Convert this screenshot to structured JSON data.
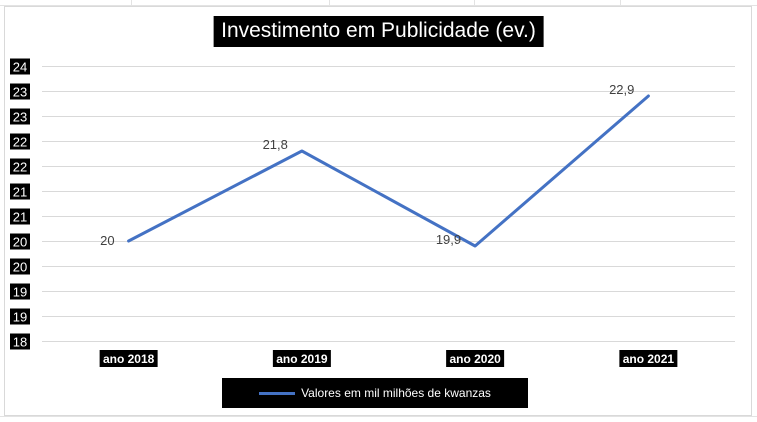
{
  "chart_data": {
    "type": "line",
    "title": "Investimento em Publicidade (ev.)",
    "categories": [
      "ano 2018",
      "ano 2019",
      "ano 2020",
      "ano 2021"
    ],
    "series": [
      {
        "name": "Valores em mil milhões de kwanzas",
        "values": [
          20,
          21.8,
          19.9,
          22.9
        ],
        "data_labels": [
          "20",
          "21,8",
          "19,9",
          "22,9"
        ],
        "color": "#4472c4"
      }
    ],
    "y_tick_labels": [
      "24",
      "23",
      "23",
      "22",
      "22",
      "21",
      "21",
      "20",
      "20",
      "19",
      "19",
      "18"
    ],
    "ylim": [
      18,
      23.5
    ],
    "grid": true,
    "legend_position": "bottom"
  }
}
